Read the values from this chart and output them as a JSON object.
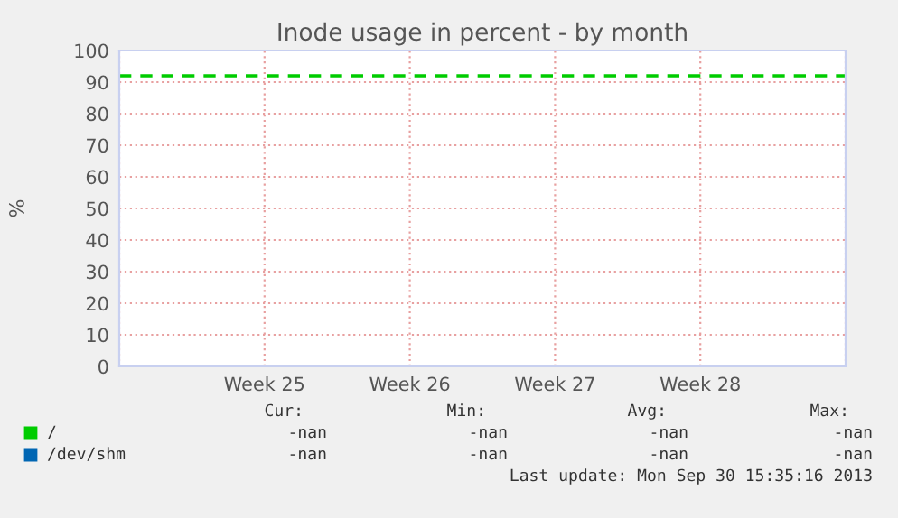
{
  "chart_data": {
    "type": "line",
    "title": "Inode usage in percent - by month",
    "ylabel": "%",
    "categories": [
      null,
      "Week 25",
      "Week 26",
      "Week 27",
      "Week 28",
      null
    ],
    "ylim": [
      0,
      100
    ],
    "yticks": [
      0,
      10,
      20,
      30,
      40,
      50,
      60,
      70,
      80,
      90,
      100
    ],
    "grid": true,
    "legend": "bottom left",
    "line_style": "dashed",
    "series": [
      {
        "name": "/",
        "color": "#00cc00",
        "values": [
          92,
          92,
          92,
          92,
          92,
          92
        ]
      },
      {
        "name": "/dev/shm",
        "color": "#0066b3",
        "values": [
          null,
          null,
          null,
          null,
          null,
          null
        ]
      }
    ],
    "annotations": [
      "Cur:",
      "Min:",
      "Avg:",
      "Max:",
      "-nan",
      "-nan",
      "-nan",
      "-nan",
      "-nan",
      "-nan",
      "-nan",
      "-nan",
      "Last update: Mon Sep 30 15:35:16 2013"
    ]
  }
}
